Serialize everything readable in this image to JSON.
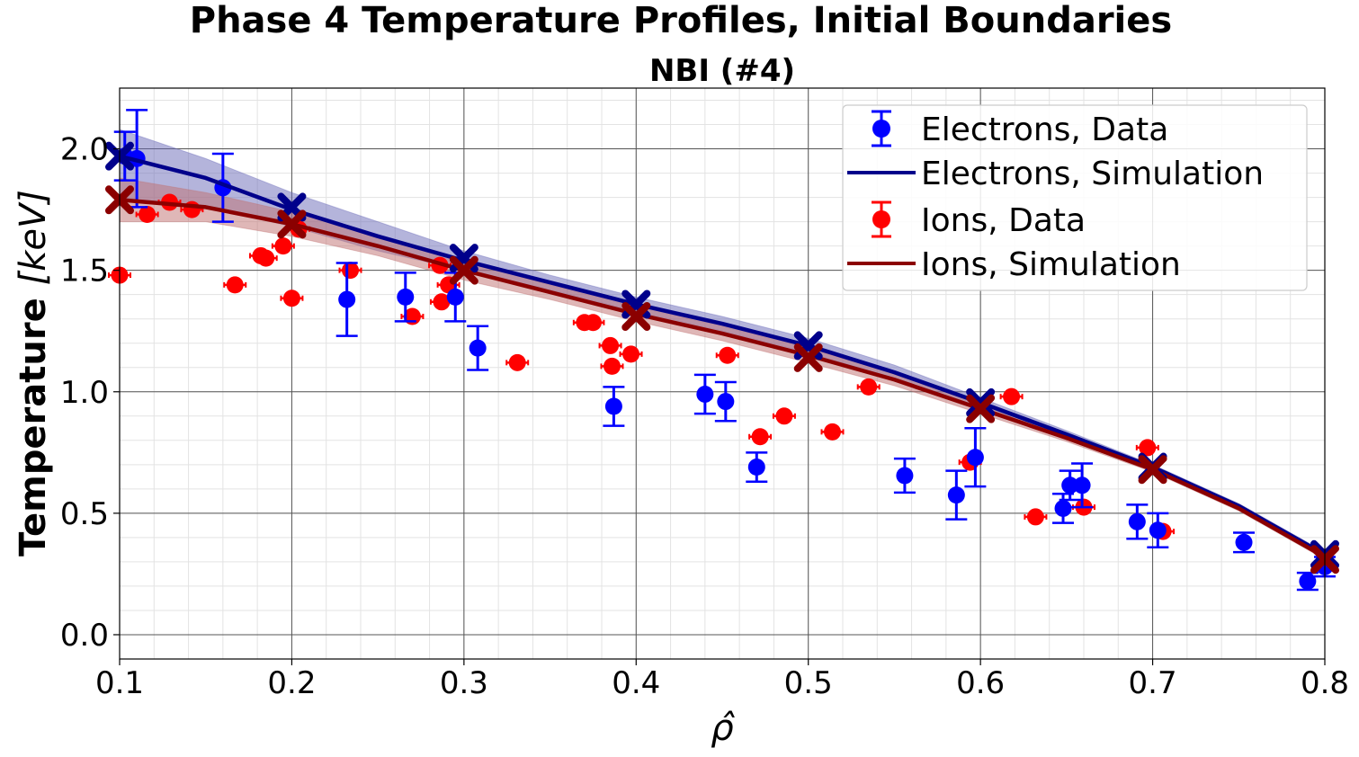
{
  "chart_data": {
    "type": "scatter",
    "title": "Phase 4 Temperature Profiles, Initial Boundaries",
    "subtitle": "NBI (#4)",
    "xlabel": "ρ̂",
    "ylabel": "Temperature [keV]",
    "ylabel_main": "Temperature ",
    "ylabel_unit": "[keV]",
    "xlim": [
      0.1,
      0.8
    ],
    "ylim": [
      -0.1,
      2.25
    ],
    "x_ticks": [
      0.1,
      0.2,
      0.3,
      0.4,
      0.5,
      0.6,
      0.7,
      0.8
    ],
    "x_tick_labels": [
      "0.1",
      "0.2",
      "0.3",
      "0.4",
      "0.5",
      "0.6",
      "0.7",
      "0.8"
    ],
    "y_ticks": [
      0.0,
      0.5,
      1.0,
      1.5,
      2.0
    ],
    "y_tick_labels": [
      "0.0",
      "0.5",
      "1.0",
      "1.5",
      "2.0"
    ],
    "grid": true,
    "legend_position": "top-right",
    "colors": {
      "electrons_data": "#0000ff",
      "electrons_sim": "#00008b",
      "ions_data": "#ff0000",
      "ions_sim": "#8b0000",
      "electrons_band": "#6a6ab8",
      "ions_band": "#c07070"
    },
    "series": [
      {
        "name": "Electrons, Data",
        "kind": "errorbar",
        "points": [
          {
            "x": 0.103,
            "y": 1.97,
            "err": 0.1
          },
          {
            "x": 0.11,
            "y": 1.96,
            "err": 0.2
          },
          {
            "x": 0.16,
            "y": 1.84,
            "err": 0.14
          },
          {
            "x": 0.232,
            "y": 1.38,
            "err": 0.15
          },
          {
            "x": 0.266,
            "y": 1.39,
            "err": 0.1
          },
          {
            "x": 0.295,
            "y": 1.39,
            "err": 0.1
          },
          {
            "x": 0.308,
            "y": 1.18,
            "err": 0.09
          },
          {
            "x": 0.387,
            "y": 0.94,
            "err": 0.08
          },
          {
            "x": 0.44,
            "y": 0.99,
            "err": 0.08
          },
          {
            "x": 0.452,
            "y": 0.96,
            "err": 0.08
          },
          {
            "x": 0.47,
            "y": 0.69,
            "err": 0.06
          },
          {
            "x": 0.556,
            "y": 0.655,
            "err": 0.07
          },
          {
            "x": 0.586,
            "y": 0.575,
            "err": 0.1
          },
          {
            "x": 0.597,
            "y": 0.73,
            "err": 0.12
          },
          {
            "x": 0.648,
            "y": 0.52,
            "err": 0.06
          },
          {
            "x": 0.652,
            "y": 0.615,
            "err": 0.06
          },
          {
            "x": 0.659,
            "y": 0.615,
            "err": 0.09
          },
          {
            "x": 0.691,
            "y": 0.465,
            "err": 0.07
          },
          {
            "x": 0.703,
            "y": 0.43,
            "err": 0.07
          },
          {
            "x": 0.753,
            "y": 0.38,
            "err": 0.04
          },
          {
            "x": 0.79,
            "y": 0.22,
            "err": 0.035
          },
          {
            "x": 0.8,
            "y": 0.28,
            "err": 0.04
          }
        ]
      },
      {
        "name": "Electrons, Simulation",
        "kind": "line",
        "x": [
          0.1,
          0.15,
          0.2,
          0.25,
          0.3,
          0.35,
          0.4,
          0.45,
          0.5,
          0.55,
          0.6,
          0.65,
          0.7,
          0.75,
          0.8
        ],
        "y": [
          1.97,
          1.88,
          1.75,
          1.64,
          1.54,
          1.45,
          1.36,
          1.28,
          1.19,
          1.08,
          0.955,
          0.825,
          0.69,
          0.53,
          0.33
        ],
        "band_upper": [
          2.08,
          1.96,
          1.82,
          1.7,
          1.58,
          1.48,
          1.39,
          1.31,
          1.22,
          1.11,
          0.975,
          0.84,
          0.7,
          0.54,
          0.34
        ],
        "band_lower": [
          1.8,
          1.76,
          1.68,
          1.58,
          1.5,
          1.42,
          1.33,
          1.25,
          1.16,
          1.055,
          0.935,
          0.81,
          0.68,
          0.52,
          0.32
        ],
        "markers": [
          {
            "x": 0.1,
            "y": 1.97
          },
          {
            "x": 0.2,
            "y": 1.76
          },
          {
            "x": 0.3,
            "y": 1.55
          },
          {
            "x": 0.4,
            "y": 1.36
          },
          {
            "x": 0.5,
            "y": 1.19
          },
          {
            "x": 0.6,
            "y": 0.955
          },
          {
            "x": 0.7,
            "y": 0.69
          },
          {
            "x": 0.8,
            "y": 0.33
          }
        ]
      },
      {
        "name": "Ions, Data",
        "kind": "errorbar",
        "points": [
          {
            "x": 0.1,
            "y": 1.48,
            "err": 0.1
          },
          {
            "x": 0.116,
            "y": 1.73,
            "err": 0.02
          },
          {
            "x": 0.129,
            "y": 1.78,
            "err": 0.02
          },
          {
            "x": 0.142,
            "y": 1.75,
            "err": 0.02
          },
          {
            "x": 0.167,
            "y": 1.44,
            "err": 0.02
          },
          {
            "x": 0.182,
            "y": 1.56,
            "err": 0.02
          },
          {
            "x": 0.185,
            "y": 1.55,
            "err": 0.02
          },
          {
            "x": 0.195,
            "y": 1.6,
            "err": 0.02
          },
          {
            "x": 0.2,
            "y": 1.385,
            "err": 0.02
          },
          {
            "x": 0.204,
            "y": 1.67,
            "err": 0.02
          },
          {
            "x": 0.234,
            "y": 1.5,
            "err": 0.02
          },
          {
            "x": 0.27,
            "y": 1.31,
            "err": 0.02
          },
          {
            "x": 0.286,
            "y": 1.52,
            "err": 0.02
          },
          {
            "x": 0.287,
            "y": 1.37,
            "err": 0.02
          },
          {
            "x": 0.291,
            "y": 1.44,
            "err": 0.02
          },
          {
            "x": 0.331,
            "y": 1.12,
            "err": 0.02
          },
          {
            "x": 0.37,
            "y": 1.285,
            "err": 0.02
          },
          {
            "x": 0.375,
            "y": 1.285,
            "err": 0.02
          },
          {
            "x": 0.385,
            "y": 1.19,
            "err": 0.02
          },
          {
            "x": 0.386,
            "y": 1.105,
            "err": 0.02
          },
          {
            "x": 0.397,
            "y": 1.155,
            "err": 0.02
          },
          {
            "x": 0.453,
            "y": 1.15,
            "err": 0.02
          },
          {
            "x": 0.472,
            "y": 0.815,
            "err": 0.02
          },
          {
            "x": 0.486,
            "y": 0.9,
            "err": 0.02
          },
          {
            "x": 0.514,
            "y": 0.835,
            "err": 0.02
          },
          {
            "x": 0.535,
            "y": 1.02,
            "err": 0.02
          },
          {
            "x": 0.594,
            "y": 0.71,
            "err": 0.02
          },
          {
            "x": 0.618,
            "y": 0.98,
            "err": 0.02
          },
          {
            "x": 0.632,
            "y": 0.485,
            "err": 0.02
          },
          {
            "x": 0.66,
            "y": 0.525,
            "err": 0.02
          },
          {
            "x": 0.697,
            "y": 0.77,
            "err": 0.02
          },
          {
            "x": 0.706,
            "y": 0.425,
            "err": 0.02
          }
        ]
      },
      {
        "name": "Ions, Simulation",
        "kind": "line",
        "x": [
          0.1,
          0.15,
          0.2,
          0.25,
          0.3,
          0.35,
          0.4,
          0.45,
          0.5,
          0.55,
          0.6,
          0.65,
          0.7,
          0.75,
          0.8
        ],
        "y": [
          1.79,
          1.76,
          1.69,
          1.6,
          1.5,
          1.41,
          1.32,
          1.24,
          1.15,
          1.05,
          0.93,
          0.81,
          0.68,
          0.52,
          0.32
        ],
        "band_upper": [
          1.88,
          1.82,
          1.74,
          1.64,
          1.54,
          1.44,
          1.35,
          1.27,
          1.18,
          1.075,
          0.95,
          0.825,
          0.69,
          0.53,
          0.33
        ],
        "band_lower": [
          1.7,
          1.7,
          1.64,
          1.56,
          1.46,
          1.38,
          1.29,
          1.21,
          1.12,
          1.025,
          0.91,
          0.795,
          0.67,
          0.51,
          0.31
        ],
        "markers": [
          {
            "x": 0.1,
            "y": 1.79
          },
          {
            "x": 0.2,
            "y": 1.69
          },
          {
            "x": 0.3,
            "y": 1.5
          },
          {
            "x": 0.4,
            "y": 1.31
          },
          {
            "x": 0.5,
            "y": 1.14
          },
          {
            "x": 0.6,
            "y": 0.93
          },
          {
            "x": 0.7,
            "y": 0.68
          },
          {
            "x": 0.8,
            "y": 0.31
          }
        ]
      }
    ]
  }
}
